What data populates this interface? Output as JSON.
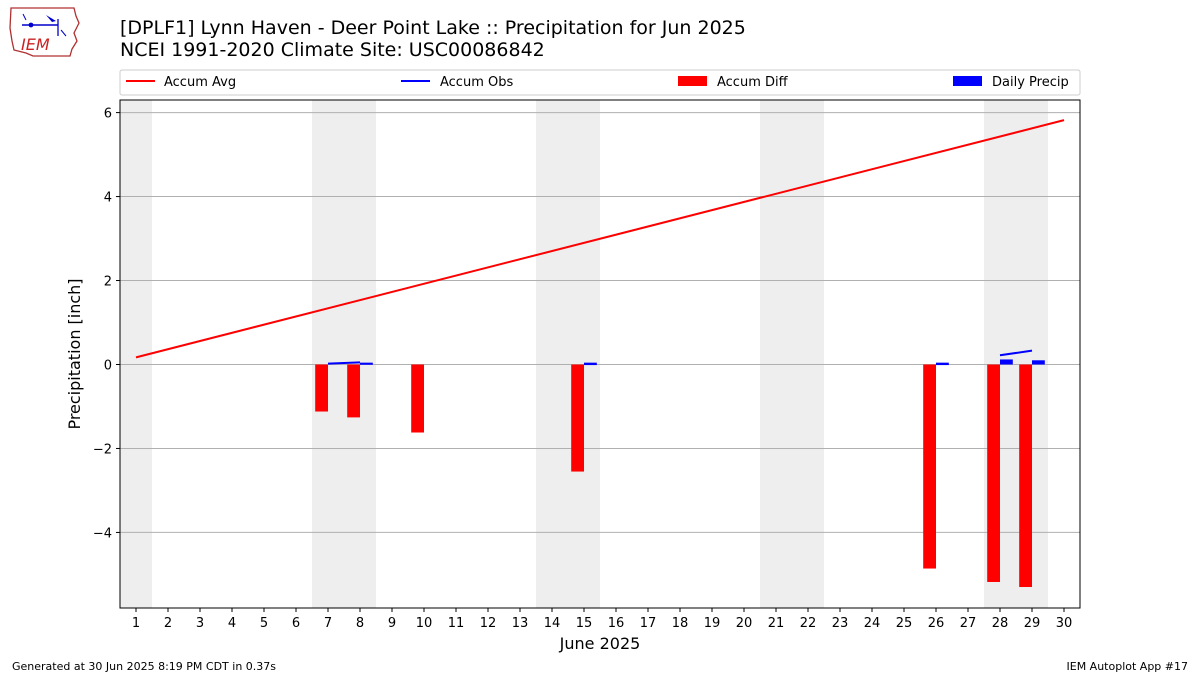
{
  "header": {
    "title_line1": "[DPLF1] Lynn Haven - Deer Point Lake :: Precipitation for Jun 2025",
    "title_line2": "NCEI 1991-2020 Climate Site: USC00086842",
    "logo_text": "IEM"
  },
  "footer": {
    "left": "Generated at 30 Jun 2025 8:19 PM CDT in 0.37s",
    "right": "IEM Autoplot App #17"
  },
  "colors": {
    "accum_avg": "#ff0000",
    "accum_obs": "#0000ff",
    "accum_diff": "#ff0000",
    "daily_precip": "#0000ff",
    "weekend_shade": "#eeeeee",
    "grid": "#b0b0b0"
  },
  "chart_data": {
    "type": "bar",
    "xlabel": "June 2025",
    "ylabel": "Precipitation [inch]",
    "xlim": [
      0.5,
      30.5
    ],
    "ylim": [
      -5.8,
      6.3
    ],
    "grid": "horizontal",
    "legend_placement": "top",
    "x_ticks": [
      1,
      2,
      3,
      4,
      5,
      6,
      7,
      8,
      9,
      10,
      11,
      12,
      13,
      14,
      15,
      16,
      17,
      18,
      19,
      20,
      21,
      22,
      23,
      24,
      25,
      26,
      27,
      28,
      29,
      30
    ],
    "y_ticks": [
      -4,
      -2,
      0,
      2,
      4,
      6
    ],
    "y_tick_labels": [
      "−4",
      "−2",
      "0",
      "2",
      "4",
      "6"
    ],
    "weekend_shading": [
      [
        0.5,
        1.5
      ],
      [
        6.5,
        8.5
      ],
      [
        13.5,
        15.5
      ],
      [
        20.5,
        22.5
      ],
      [
        27.5,
        29.5
      ]
    ],
    "legend": [
      "Accum Avg",
      "Accum Obs",
      "Accum Diff",
      "Daily Precip"
    ],
    "series": [
      {
        "name": "Accum Avg",
        "kind": "line",
        "x": [
          1,
          30
        ],
        "values": [
          0.17,
          5.82
        ]
      },
      {
        "name": "Accum Obs",
        "kind": "line",
        "segments": [
          {
            "x": [
              7,
              8
            ],
            "values": [
              0.02,
              0.05
            ]
          },
          {
            "x": [
              8,
              8.4
            ],
            "values": [
              0.02,
              0.02
            ]
          },
          {
            "x": [
              15,
              15.4
            ],
            "values": [
              0.02,
              0.02
            ]
          },
          {
            "x": [
              26,
              26.4
            ],
            "values": [
              0.02,
              0.02
            ]
          },
          {
            "x": [
              28,
              29
            ],
            "values": [
              0.22,
              0.33
            ]
          }
        ]
      },
      {
        "name": "Accum Diff",
        "kind": "bar",
        "x": [
          7,
          8,
          10,
          15,
          26,
          28,
          29
        ],
        "values": [
          -1.12,
          -1.26,
          -1.62,
          -2.55,
          -4.86,
          -5.18,
          -5.3
        ]
      },
      {
        "name": "Daily Precip",
        "kind": "bar",
        "x": [
          8,
          15,
          26,
          28,
          29
        ],
        "values": [
          0.02,
          0.01,
          0.01,
          0.12,
          0.1
        ]
      }
    ]
  }
}
